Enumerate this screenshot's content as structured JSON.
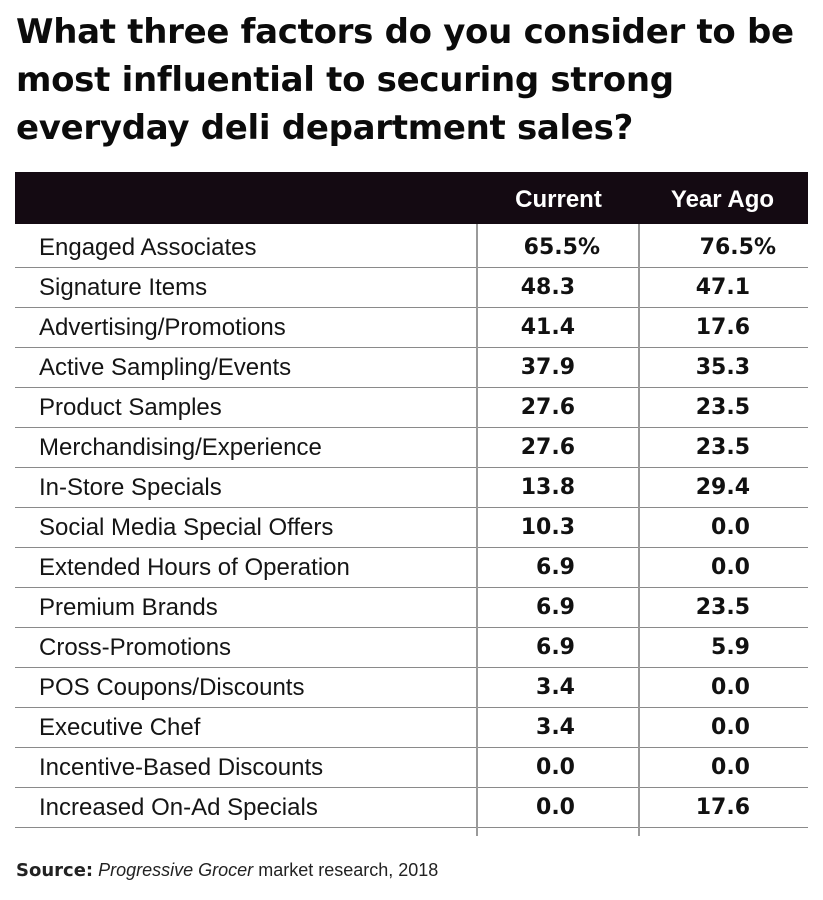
{
  "title": "What three factors do you consider to be most influential to securing strong everyday deli department sales?",
  "source": {
    "label": "Source:",
    "publication": "Progressive Grocer",
    "rest": "market research, 2018"
  },
  "chart_data": {
    "type": "table",
    "columns": [
      "Current",
      "Year Ago"
    ],
    "rows": [
      {
        "label": "Engaged Associates",
        "current": "65.5%",
        "year_ago": "76.5%"
      },
      {
        "label": "Signature Items",
        "current": "48.3",
        "year_ago": "47.1"
      },
      {
        "label": "Advertising/Promotions",
        "current": "41.4",
        "year_ago": "17.6"
      },
      {
        "label": "Active Sampling/Events",
        "current": "37.9",
        "year_ago": "35.3"
      },
      {
        "label": "Product Samples",
        "current": "27.6",
        "year_ago": "23.5"
      },
      {
        "label": "Merchandising/Experience",
        "current": "27.6",
        "year_ago": "23.5"
      },
      {
        "label": "In-Store Specials",
        "current": "13.8",
        "year_ago": "29.4"
      },
      {
        "label": "Social Media Special Offers",
        "current": "10.3",
        "year_ago": "0.0"
      },
      {
        "label": "Extended Hours of Operation",
        "current": "6.9",
        "year_ago": "0.0"
      },
      {
        "label": "Premium Brands",
        "current": "6.9",
        "year_ago": "23.5"
      },
      {
        "label": "Cross-Promotions",
        "current": "6.9",
        "year_ago": "5.9"
      },
      {
        "label": "POS Coupons/Discounts",
        "current": "3.4",
        "year_ago": "0.0"
      },
      {
        "label": "Executive Chef",
        "current": "3.4",
        "year_ago": "0.0"
      },
      {
        "label": "Incentive-Based Discounts",
        "current": "0.0",
        "year_ago": "0.0"
      },
      {
        "label": "Increased On-Ad Specials",
        "current": "0.0",
        "year_ago": "17.6"
      }
    ]
  }
}
